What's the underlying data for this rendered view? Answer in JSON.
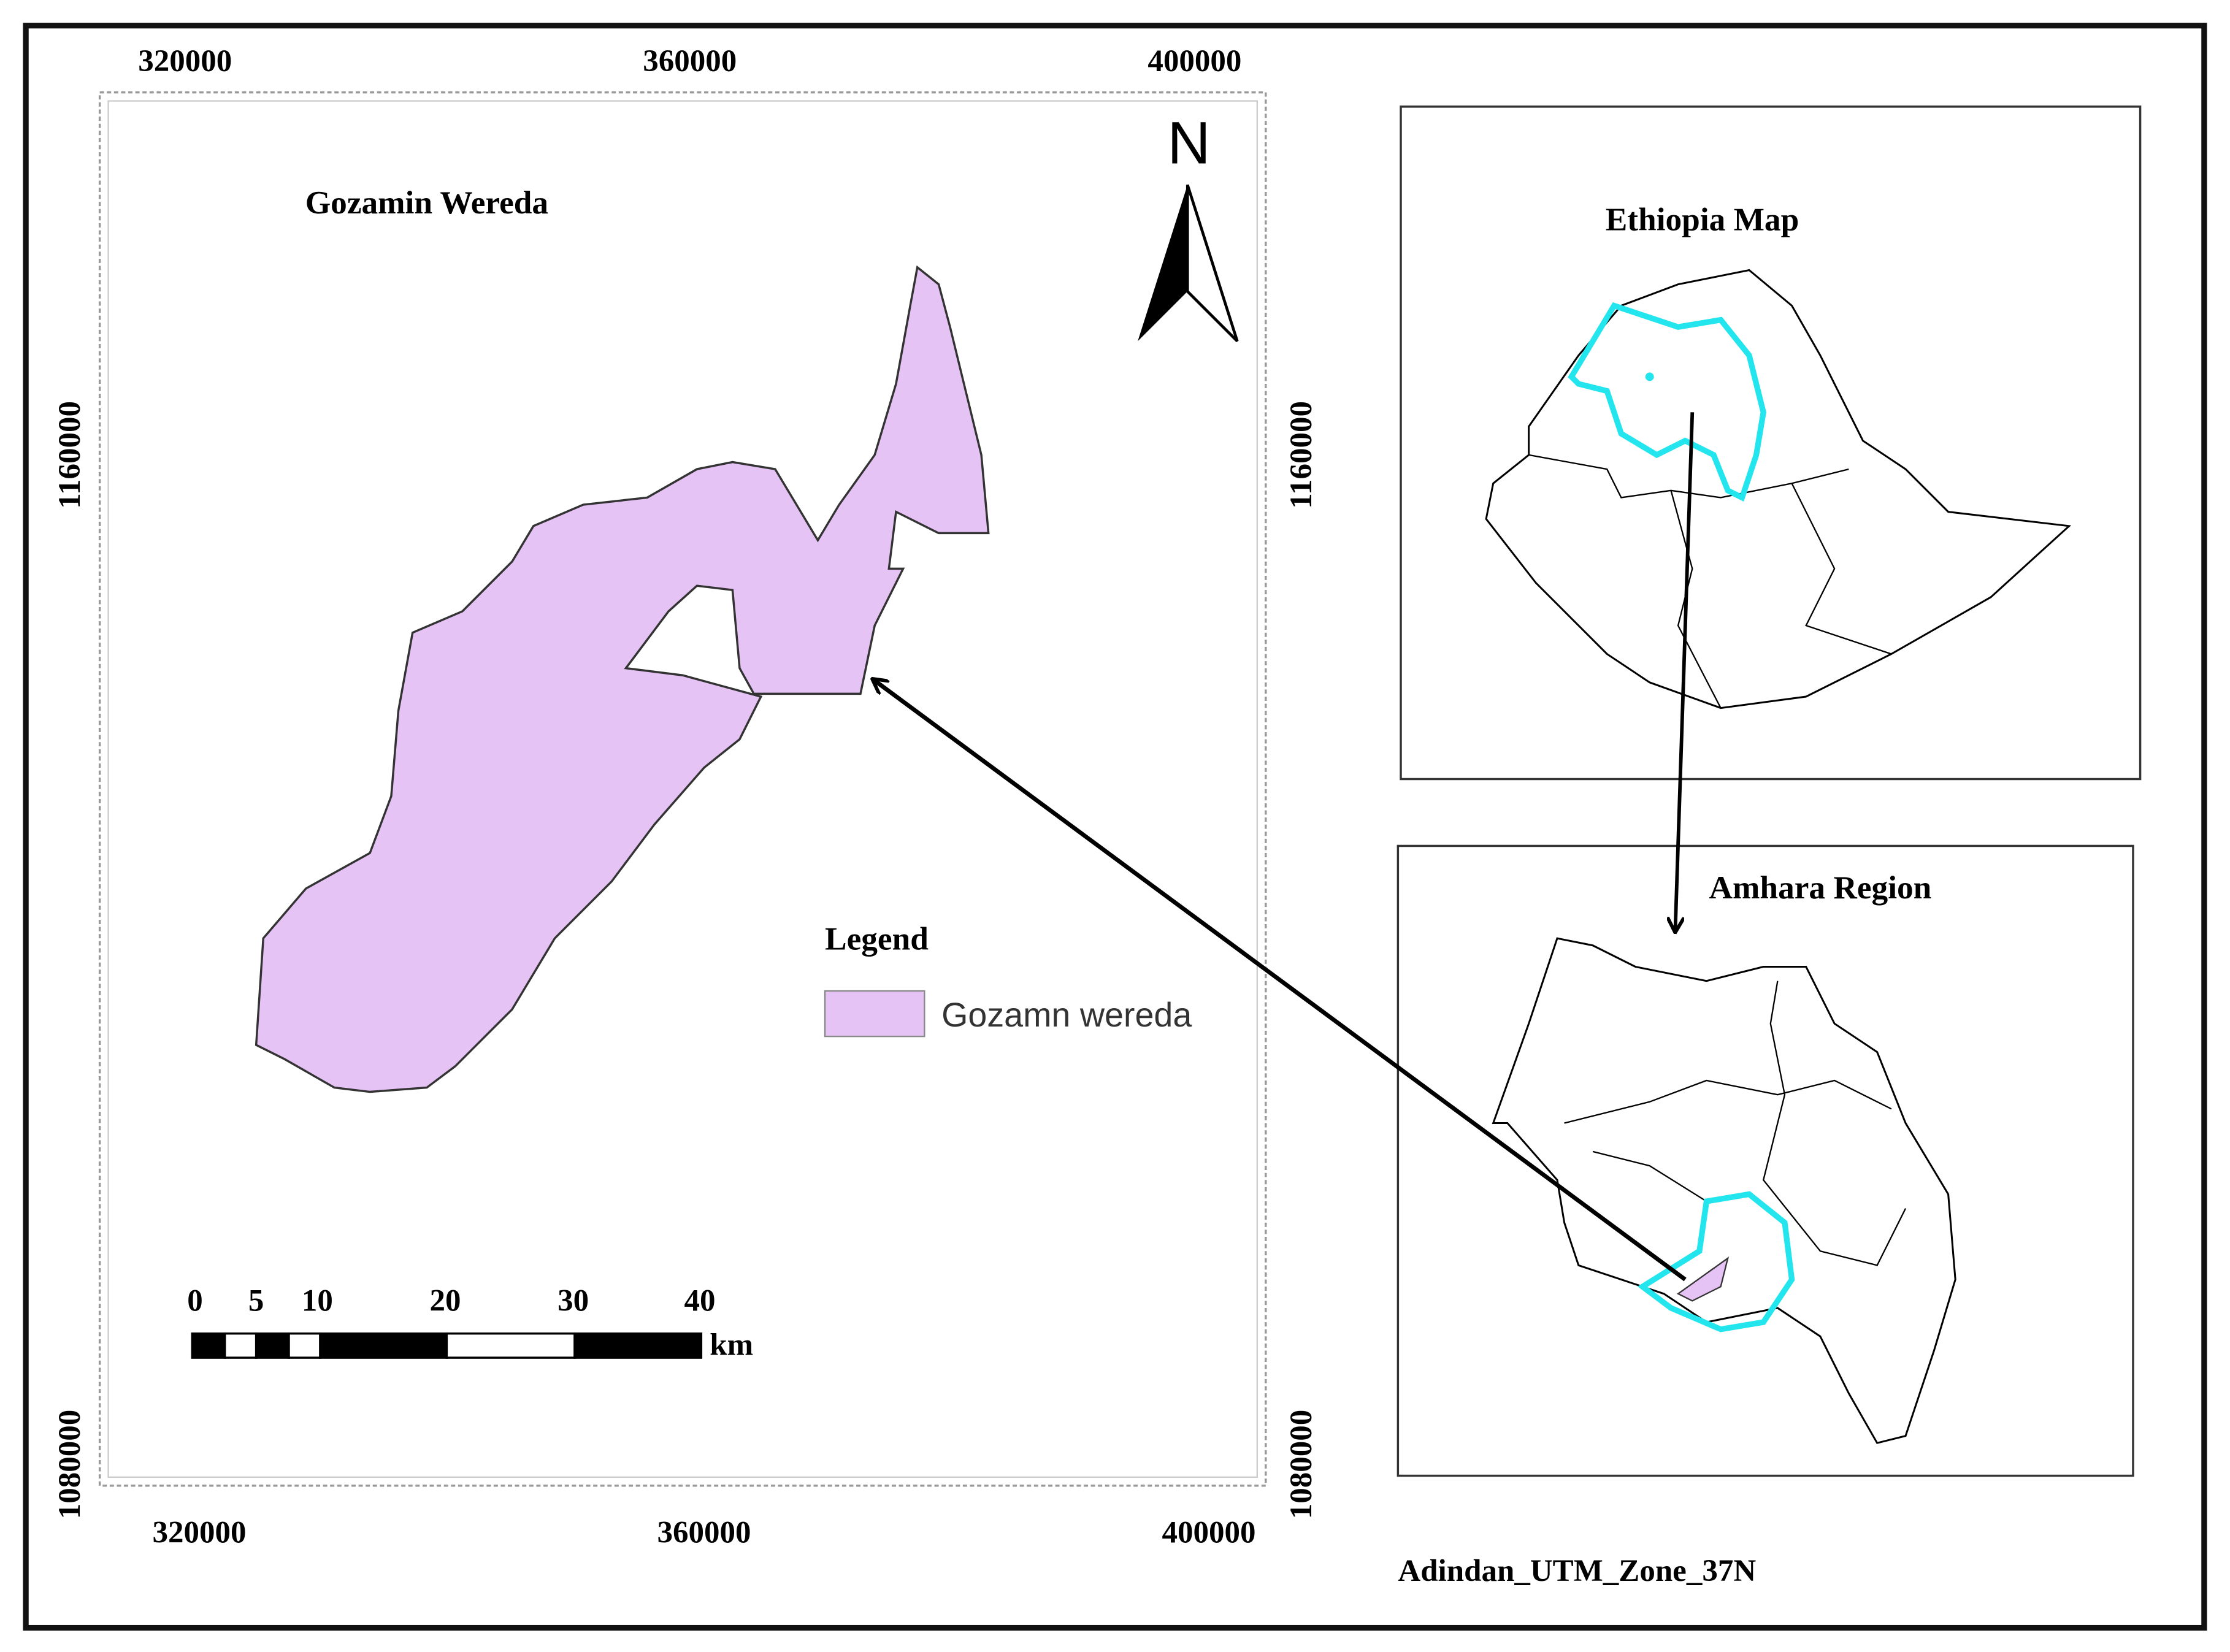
{
  "main_map": {
    "title": "Gozamin Wereda",
    "x_ticks_top": [
      "320000",
      "360000",
      "400000"
    ],
    "x_ticks_bottom": [
      "320000",
      "360000",
      "400000"
    ],
    "y_ticks_left": [
      "1160000",
      "1080000"
    ],
    "y_ticks_right": [
      "1160000",
      "1080000"
    ],
    "north": "N",
    "legend": {
      "title": "Legend",
      "items": [
        "Gozamn wereda"
      ]
    },
    "scale_bar": {
      "labels": [
        "0",
        "5",
        "10",
        "20",
        "30",
        "40"
      ],
      "unit": "km"
    }
  },
  "inset_ethiopia": {
    "title": "Ethiopia Map"
  },
  "inset_amhara": {
    "title": "Amhara Region"
  },
  "projection": "Adindan_UTM_Zone_37N"
}
